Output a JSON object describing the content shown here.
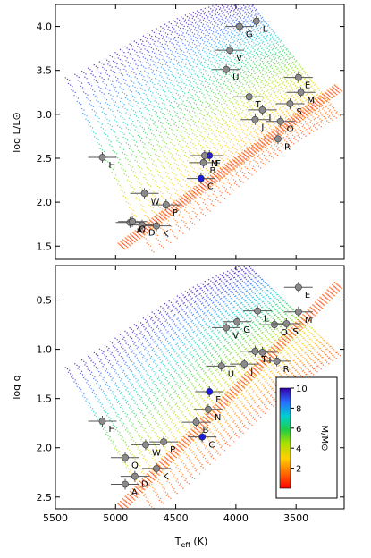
{
  "colors": {
    "observed_point": "#8a8a8a",
    "highlight_point": "#1c1cd6",
    "errorbar": "#555555",
    "track_low_mass": "#ff2a00",
    "track_high_mass": "#1a1acc"
  },
  "chart_data": [
    {
      "type": "scatter",
      "title": "",
      "xlabel": "",
      "ylabel": "log L/L⊙",
      "x_reversed": true,
      "xlim": [
        5500,
        3100
      ],
      "ylim": [
        1.35,
        4.25
      ],
      "x_ticks": [
        5500,
        5000,
        4500,
        4000,
        3500
      ],
      "y_ticks": [
        1.5,
        2.0,
        2.5,
        3.0,
        3.5,
        4.0
      ],
      "y_tick_labels": [
        "1.5",
        "2.0",
        "2.5",
        "3.0",
        "3.5",
        "4.0"
      ],
      "series": [
        {
          "points": [
            {
              "label": "A",
              "teff": 4880,
              "logL": 1.77
            },
            {
              "label": "B",
              "teff": 4270,
              "logL": 2.45
            },
            {
              "label": "C",
              "teff": 4290,
              "logL": 2.27,
              "highlight": true
            },
            {
              "label": "D",
              "teff": 4780,
              "logL": 1.74
            },
            {
              "label": "E",
              "teff": 3480,
              "logL": 3.42
            },
            {
              "label": "F",
              "teff": 4220,
              "logL": 2.53,
              "highlight": true
            },
            {
              "label": "G",
              "teff": 3970,
              "logL": 4.0
            },
            {
              "label": "H",
              "teff": 5110,
              "logL": 2.51
            },
            {
              "label": "I",
              "teff": 3780,
              "logL": 3.05
            },
            {
              "label": "J",
              "teff": 3840,
              "logL": 2.94
            },
            {
              "label": "K",
              "teff": 4660,
              "logL": 1.73
            },
            {
              "label": "L",
              "teff": 3830,
              "logL": 4.06
            },
            {
              "label": "M",
              "teff": 3460,
              "logL": 3.25
            },
            {
              "label": "N",
              "teff": 4260,
              "logL": 2.53
            },
            {
              "label": "O",
              "teff": 3630,
              "logL": 2.92
            },
            {
              "label": "P",
              "teff": 4580,
              "logL": 1.97
            },
            {
              "label": "Q",
              "teff": 4860,
              "logL": 1.78
            },
            {
              "label": "R",
              "teff": 3650,
              "logL": 2.72
            },
            {
              "label": "S",
              "teff": 3550,
              "logL": 3.12
            },
            {
              "label": "T",
              "teff": 3890,
              "logL": 3.2
            },
            {
              "label": "U",
              "teff": 4080,
              "logL": 3.51
            },
            {
              "label": "V",
              "teff": 4050,
              "logL": 3.73
            },
            {
              "label": "W",
              "teff": 4760,
              "logL": 2.1
            }
          ]
        }
      ]
    },
    {
      "type": "scatter",
      "title": "",
      "xlabel": "T",
      "xlabel_sub": "eff",
      "xlabel_unit": " (K)",
      "ylabel": "log g",
      "x_reversed": true,
      "y_reversed": true,
      "xlim": [
        5500,
        3100
      ],
      "ylim": [
        2.62,
        0.15
      ],
      "x_ticks": [
        5500,
        5000,
        4500,
        4000,
        3500
      ],
      "x_tick_labels": [
        "5500",
        "5000",
        "4500",
        "4000",
        "3500"
      ],
      "y_ticks": [
        0.5,
        1.0,
        1.5,
        2.0,
        2.5
      ],
      "y_tick_labels": [
        "0.5",
        "1.0",
        "1.5",
        "2.0",
        "2.5"
      ],
      "series": [
        {
          "points": [
            {
              "label": "A",
              "teff": 4920,
              "logg": 2.37
            },
            {
              "label": "B",
              "teff": 4330,
              "logg": 1.74
            },
            {
              "label": "C",
              "teff": 4280,
              "logg": 1.89,
              "highlight": true
            },
            {
              "label": "D",
              "teff": 4840,
              "logg": 2.29
            },
            {
              "label": "E",
              "teff": 3480,
              "logg": 0.37
            },
            {
              "label": "F",
              "teff": 4220,
              "logg": 1.43,
              "highlight": true
            },
            {
              "label": "G",
              "teff": 3990,
              "logg": 0.72
            },
            {
              "label": "H",
              "teff": 5110,
              "logg": 1.73
            },
            {
              "label": "I",
              "teff": 3780,
              "logg": 1.03
            },
            {
              "label": "J",
              "teff": 3930,
              "logg": 1.15
            },
            {
              "label": "K",
              "teff": 4660,
              "logg": 2.21
            },
            {
              "label": "L",
              "teff": 3820,
              "logg": 0.61
            },
            {
              "label": "M",
              "teff": 3480,
              "logg": 0.62
            },
            {
              "label": "N",
              "teff": 4230,
              "logg": 1.61
            },
            {
              "label": "O",
              "teff": 3680,
              "logg": 0.75
            },
            {
              "label": "P",
              "teff": 4600,
              "logg": 1.94
            },
            {
              "label": "Q",
              "teff": 4920,
              "logg": 2.1
            },
            {
              "label": "R",
              "teff": 3660,
              "logg": 1.12
            },
            {
              "label": "S",
              "teff": 3580,
              "logg": 0.74
            },
            {
              "label": "T",
              "teff": 3840,
              "logg": 1.02
            },
            {
              "label": "U",
              "teff": 4120,
              "logg": 1.17
            },
            {
              "label": "V",
              "teff": 4080,
              "logg": 0.78
            },
            {
              "label": "W",
              "teff": 4750,
              "logg": 1.97
            }
          ]
        }
      ]
    }
  ],
  "colorbar": {
    "label": "M/M⊙",
    "range": [
      0,
      10
    ],
    "ticks": [
      2,
      4,
      6,
      8,
      10
    ],
    "tick_labels": [
      "2",
      "4",
      "6",
      "8",
      "10"
    ]
  },
  "axis_text": {
    "top_ylabel": "log L/L⊙",
    "bottom_ylabel": "log g",
    "xlabel_main": "T",
    "xlabel_sub": "eff",
    "xlabel_unit": " (K)"
  }
}
